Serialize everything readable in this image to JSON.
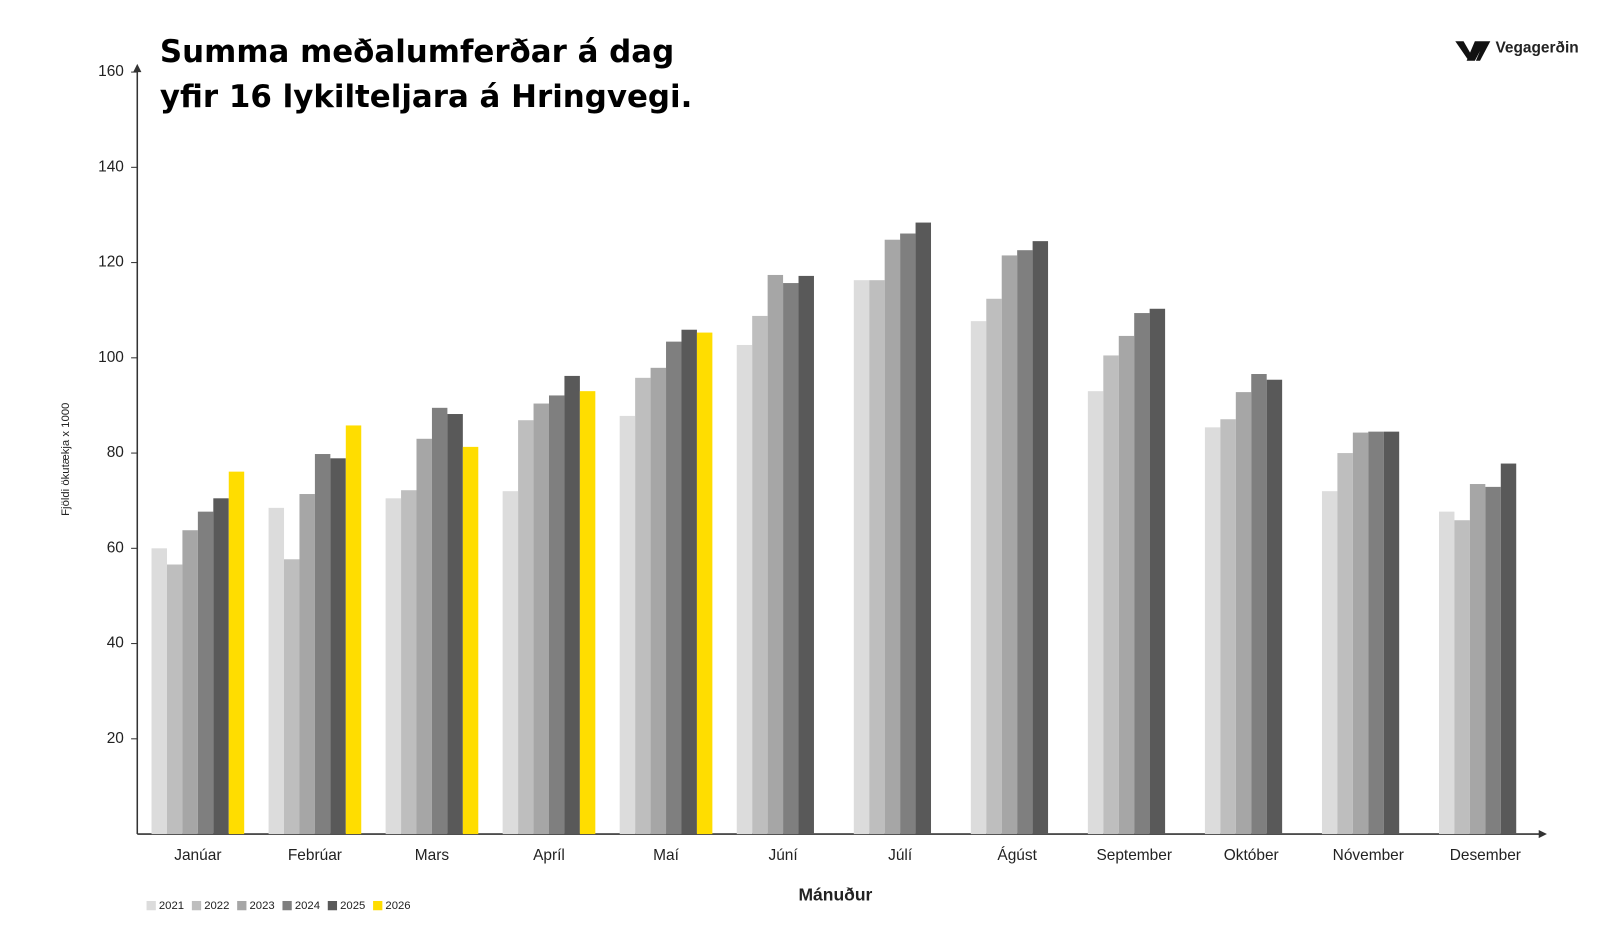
{
  "logo": "Vegagerðin",
  "chart_data": {
    "type": "bar",
    "title": [
      "Summa meðalumferðar á dag",
      "yfir 16 lykilteljara á Hringvegi."
    ],
    "y_label": "Fjöldi ökutækja x 1000",
    "x_label": "Mánuður",
    "categories": [
      "Janúar",
      "Febrúar",
      "Mars",
      "Apríl",
      "Maí",
      "Júní",
      "Júlí",
      "Ágúst",
      "September",
      "Október",
      "Nóvember",
      "Desember"
    ],
    "ylim": [
      0,
      160
    ],
    "yticks": [
      20,
      40,
      60,
      80,
      100,
      120,
      140,
      160
    ],
    "series": [
      {
        "name": "2021",
        "color": "#dcdcdc",
        "values": [
          60,
          68.5,
          70.5,
          72,
          87.8,
          102.7,
          116.3,
          107.7,
          93,
          85.4,
          72,
          67.7
        ]
      },
      {
        "name": "2022",
        "color": "#bebebe",
        "values": [
          56.6,
          57.7,
          72.2,
          86.9,
          95.8,
          108.8,
          116.3,
          112.4,
          100.5,
          87.1,
          80,
          65.9
        ]
      },
      {
        "name": "2023",
        "color": "#a6a6a6",
        "values": [
          63.8,
          71.4,
          83,
          90.4,
          97.9,
          117.4,
          124.8,
          121.5,
          104.6,
          92.8,
          84.3,
          73.5
        ]
      },
      {
        "name": "2024",
        "color": "#7f7f7f",
        "values": [
          67.7,
          79.8,
          89.5,
          92.1,
          103.4,
          115.7,
          126.1,
          122.6,
          109.4,
          96.6,
          84.5,
          72.9
        ]
      },
      {
        "name": "2025",
        "color": "#595959",
        "values": [
          70.5,
          78.9,
          88.2,
          96.2,
          105.9,
          117.2,
          128.4,
          124.5,
          110.3,
          95.4,
          84.5,
          77.8
        ]
      },
      {
        "name": "2026",
        "color": "#ffdd00",
        "values": [
          76.1,
          85.8,
          81.3,
          93,
          105.3,
          null,
          null,
          null,
          null,
          null,
          null,
          null
        ]
      }
    ]
  }
}
